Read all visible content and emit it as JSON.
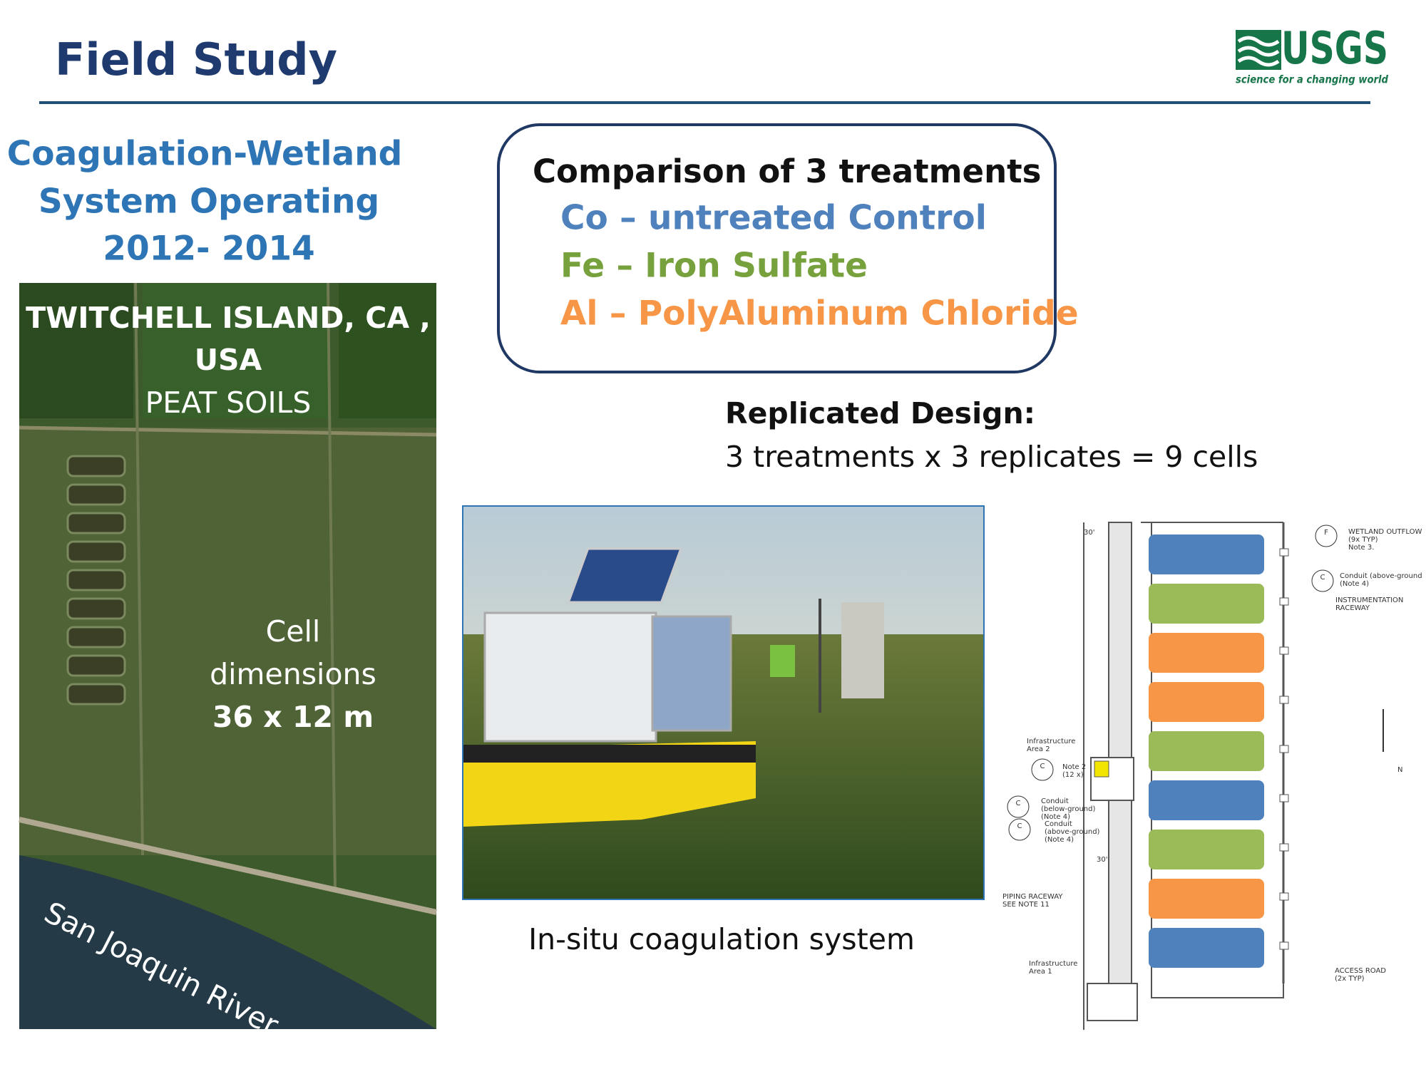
{
  "header": {
    "title": "Field Study",
    "logo": {
      "name": "USGS",
      "tagline": "science for a changing world"
    }
  },
  "left_heading": [
    "Coagulation-Wetland",
    "System Operating",
    "2012- 2014"
  ],
  "map": {
    "location": [
      "TWITCHELL ISLAND, CA ,",
      "USA"
    ],
    "soil": "PEAT SOILS",
    "cell_text": [
      "Cell",
      "dimensions"
    ],
    "cell_size": "36 x 12 m",
    "river": "San Joaquin River"
  },
  "treatments": {
    "title": "Comparison of 3 treatments",
    "items": [
      {
        "text": "Co – untreated Control",
        "color": "#4f81bd"
      },
      {
        "text": "Fe – Iron Sulfate",
        "color": "#77a13c"
      },
      {
        "text": "Al – PolyAluminum Chloride",
        "color": "#f79646"
      }
    ]
  },
  "design": {
    "title": "Replicated Design:",
    "text": "3 treatments x 3 replicates = 9 cells"
  },
  "photo": {
    "caption": "In-situ coagulation system"
  },
  "diagram": {
    "cells": [
      "#4f81bd",
      "#9bbb59",
      "#f79646",
      "#f79646",
      "#9bbb59",
      "#4f81bd",
      "#9bbb59",
      "#f79646",
      "#4f81bd"
    ],
    "labels": [
      [
        "WETLAND OUTFLOW",
        "(9x TYP)",
        "Note 3."
      ],
      [
        "Conduit (above-ground",
        "(Note 4)"
      ],
      [
        "INSTRUMENTATION",
        "RACEWAY"
      ],
      [
        "Infrastructure",
        "Area 2"
      ],
      [
        "Note 2",
        "(12 x)"
      ],
      [
        "Conduit",
        "(below-ground)",
        "(Note 4)"
      ],
      [
        "Conduit",
        "(above-ground)",
        "(Note 4)"
      ],
      [
        "PIPING RACEWAY",
        "SEE NOTE 11"
      ],
      [
        "Infrastructure",
        "Area 1"
      ],
      [
        "ACCESS ROAD",
        "(2x TYP)"
      ],
      [
        "30'"
      ],
      [
        "30'"
      ],
      [
        "N"
      ]
    ],
    "symbols": [
      "F",
      "C",
      "C",
      "C",
      "C"
    ]
  }
}
